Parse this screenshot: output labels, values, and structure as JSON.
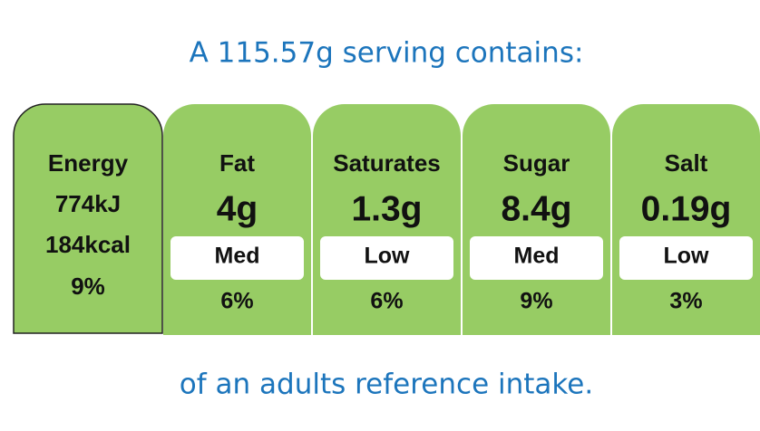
{
  "header": {
    "title": "A 115.57g serving contains:"
  },
  "energy": {
    "label": "Energy",
    "kj": "774kJ",
    "kcal": "184kcal",
    "percent": "9%"
  },
  "nutrients": [
    {
      "name": "Fat",
      "amount": "4g",
      "level": "Med",
      "percent": "6%"
    },
    {
      "name": "Saturates",
      "amount": "1.3g",
      "level": "Low",
      "percent": "6%"
    },
    {
      "name": "Sugar",
      "amount": "8.4g",
      "level": "Med",
      "percent": "9%"
    },
    {
      "name": "Salt",
      "amount": "0.19g",
      "level": "Low",
      "percent": "3%"
    }
  ],
  "footer": {
    "text": "of an adults reference intake."
  }
}
